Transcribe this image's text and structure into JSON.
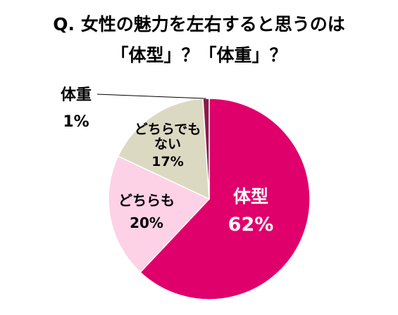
{
  "title": {
    "line1": "Q. 女性の魅力を左右すると思うのは",
    "line2": "「体型」？「体重」？"
  },
  "chart_data": {
    "type": "pie",
    "title": "Q. 女性の魅力を左右すると思うのは「体型」？「体重」？",
    "slices": [
      {
        "label": "体型",
        "label_lines": [
          "体型"
        ],
        "value": 62,
        "value_label": "62%",
        "color": "#e0006c",
        "text_color": "#ffffff"
      },
      {
        "label": "どちらも",
        "label_lines": [
          "どちらも"
        ],
        "value": 20,
        "value_label": "20%",
        "color": "#fdd1e6",
        "text_color": "#000000"
      },
      {
        "label": "どちらでもない",
        "label_lines": [
          "どちらでも",
          "ない"
        ],
        "value": 17,
        "value_label": "17%",
        "color": "#dcd9c3",
        "text_color": "#000000"
      },
      {
        "label": "体重",
        "label_lines": [
          "体重"
        ],
        "value": 1,
        "value_label": "1%",
        "color": "#8b1a4a",
        "text_color": "#000000"
      }
    ],
    "legend": "none"
  }
}
